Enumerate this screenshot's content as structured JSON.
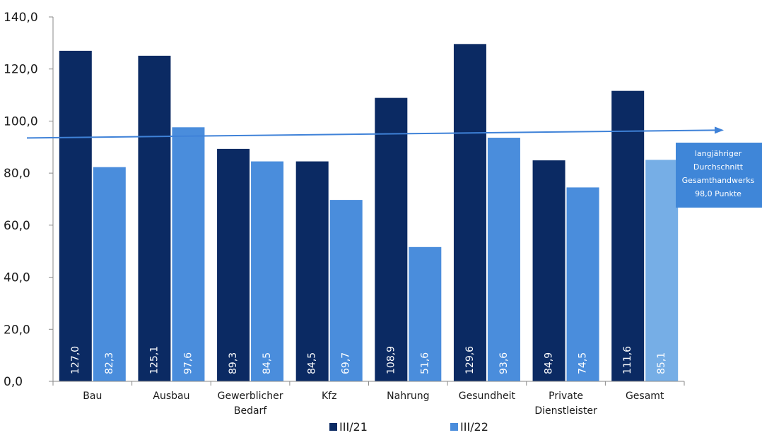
{
  "chart_data": {
    "type": "bar",
    "categories": [
      [
        "Bau"
      ],
      [
        "Ausbau"
      ],
      [
        "Gewerblicher",
        "Bedarf"
      ],
      [
        "Kfz"
      ],
      [
        "Nahrung"
      ],
      [
        "Gesundheit"
      ],
      [
        "Private",
        "Dienstleister"
      ],
      [
        "Gesamt"
      ]
    ],
    "series": [
      {
        "name": "III/21",
        "color": "#0b2a63",
        "values": [
          127.0,
          125.1,
          89.3,
          84.5,
          108.9,
          129.6,
          84.9,
          111.6
        ]
      },
      {
        "name": "III/22",
        "color": "#4a8ddc",
        "values": [
          82.3,
          97.6,
          84.5,
          69.7,
          51.6,
          93.6,
          74.5,
          85.1
        ]
      }
    ],
    "value_labels": [
      [
        "127,0",
        "125,1",
        "89,3",
        "84,5",
        "108,9",
        "129,6",
        "84,9",
        "111,6"
      ],
      [
        "82,3",
        "97,6",
        "84,5",
        "69,7",
        "51,6",
        "93,6",
        "74,5",
        "85,1"
      ]
    ],
    "highlight_bar": {
      "series": 1,
      "category": 7,
      "color": "#76aee6"
    },
    "ylim": [
      0,
      140
    ],
    "yticks": [
      0,
      20,
      40,
      60,
      80,
      100,
      120,
      140
    ],
    "ytick_labels": [
      "0,0",
      "20,0",
      "40,0",
      "60,0",
      "80,0",
      "100,0",
      "120,0",
      "140,0"
    ],
    "reference_line": {
      "from": 93.5,
      "to": 96.5,
      "color": "#3f82d8"
    },
    "callout": {
      "lines": [
        "langjähriger",
        "Durchschnitt",
        "Gesamthandwerks",
        "98,0 Punkte"
      ],
      "color": "#3f86d8"
    },
    "legend_position": "bottom",
    "grid": false,
    "title": "",
    "xlabel": "",
    "ylabel": ""
  }
}
